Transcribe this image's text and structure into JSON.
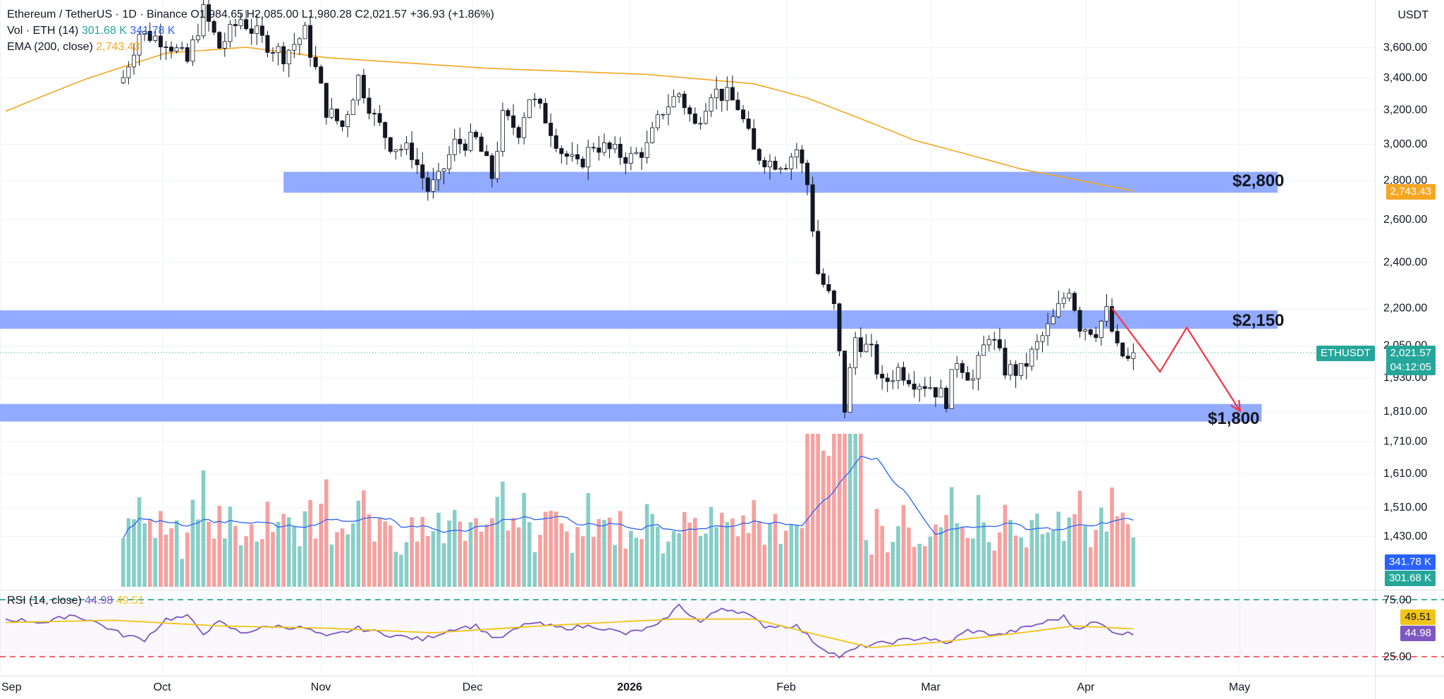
{
  "header": {
    "symbol": "Ethereum / TetherUS · 1D · Binance",
    "ohlc": "O1,984.65 H2,085.00 L1,980.28 C2,021.57 +36.93 (+1.86%)",
    "vol_label": "Vol · ETH (14)",
    "vol_value_1": "301.68 K",
    "vol_value_2": "341.78 K",
    "ema_label": "EMA (200, close)",
    "ema_value": "2,743.43",
    "rsi_label": "RSI (14, close)",
    "rsi_value": "44.98",
    "rsi_ma_value": "49.51"
  },
  "currency": "USDT",
  "tags": {
    "ema": "2,743.43",
    "symbol": "ETHUSDT",
    "price": "2,021.57",
    "countdown": "04:12:05",
    "vol_ma": "341.78 K",
    "vol": "301.68 K",
    "rsi_ma": "49.51",
    "rsi": "44.98"
  },
  "levels": [
    {
      "label": "$2,800",
      "price": 2800
    },
    {
      "label": "$2,150",
      "price": 2150
    },
    {
      "label": "$1,800",
      "price": 1800
    }
  ],
  "colors": {
    "up": "#26a69a",
    "down": "#ef5350",
    "zone": "#7f9cff",
    "ema": "#f5a623",
    "rsi": "#7e57c2",
    "rsi_ma": "#f0c419",
    "vol_ma": "#2962ff",
    "arrow": "#f23645"
  },
  "chart_data": [
    {
      "type": "candlestick",
      "title": "Ethereum / TetherUS · 1D · Binance",
      "yscale": "log",
      "y_ticks": [
        "3,600.00",
        "3,400.00",
        "3,200.00",
        "3,000.00",
        "2,800.00",
        "2,600.00",
        "2,400.00",
        "2,200.00",
        "2,050.00",
        "1,930.00",
        "1,810.00",
        "1,710.00",
        "1,610.00",
        "1,510.00",
        "1,430.00"
      ],
      "x_ticks": [
        "Sep",
        "Oct",
        "Nov",
        "Dec",
        "2026",
        "Feb",
        "Mar",
        "Apr",
        "May"
      ],
      "close_anchors": [
        {
          "day": 22,
          "close": 3400
        },
        {
          "day": 25,
          "close": 3700
        },
        {
          "day": 30,
          "close": 3650
        },
        {
          "day": 34,
          "close": 3500
        },
        {
          "day": 37,
          "close": 3850
        },
        {
          "day": 40,
          "close": 3600
        },
        {
          "day": 44,
          "close": 3800
        },
        {
          "day": 48,
          "close": 3650
        },
        {
          "day": 52,
          "close": 3550
        },
        {
          "day": 56,
          "close": 3700
        },
        {
          "day": 60,
          "close": 3200
        },
        {
          "day": 63,
          "close": 3100
        },
        {
          "day": 66,
          "close": 3400
        },
        {
          "day": 69,
          "close": 3150
        },
        {
          "day": 72,
          "close": 3000
        },
        {
          "day": 76,
          "close": 2950
        },
        {
          "day": 79,
          "close": 2750
        },
        {
          "day": 81,
          "close": 2800
        },
        {
          "day": 84,
          "close": 3000
        },
        {
          "day": 88,
          "close": 3020
        },
        {
          "day": 91,
          "close": 2820
        },
        {
          "day": 93,
          "close": 3150
        },
        {
          "day": 96,
          "close": 3080
        },
        {
          "day": 98,
          "close": 3280
        },
        {
          "day": 101,
          "close": 3150
        },
        {
          "day": 104,
          "close": 2960
        },
        {
          "day": 107,
          "close": 2870
        },
        {
          "day": 110,
          "close": 3000
        },
        {
          "day": 114,
          "close": 2950
        },
        {
          "day": 117,
          "close": 2920
        },
        {
          "day": 120,
          "close": 2980
        },
        {
          "day": 123,
          "close": 3200
        },
        {
          "day": 126,
          "close": 3300
        },
        {
          "day": 129,
          "close": 3100
        },
        {
          "day": 132,
          "close": 3320
        },
        {
          "day": 135,
          "close": 3280
        },
        {
          "day": 137,
          "close": 3220
        },
        {
          "day": 140,
          "close": 2950
        },
        {
          "day": 143,
          "close": 2900
        },
        {
          "day": 146,
          "close": 2900
        },
        {
          "day": 148,
          "close": 2970
        },
        {
          "day": 150,
          "close": 2780
        },
        {
          "day": 152,
          "close": 2350
        },
        {
          "day": 155,
          "close": 2200
        },
        {
          "day": 157,
          "close": 1820
        },
        {
          "day": 159,
          "close": 2080
        },
        {
          "day": 162,
          "close": 2020
        },
        {
          "day": 164,
          "close": 1900
        },
        {
          "day": 167,
          "close": 1960
        },
        {
          "day": 170,
          "close": 1920
        },
        {
          "day": 173,
          "close": 1900
        },
        {
          "day": 176,
          "close": 1850
        },
        {
          "day": 178,
          "close": 2000
        },
        {
          "day": 181,
          "close": 1920
        },
        {
          "day": 184,
          "close": 2100
        },
        {
          "day": 187,
          "close": 1960
        },
        {
          "day": 190,
          "close": 1950
        },
        {
          "day": 193,
          "close": 2050
        },
        {
          "day": 196,
          "close": 2150
        },
        {
          "day": 199,
          "close": 2290
        },
        {
          "day": 201,
          "close": 2130
        },
        {
          "day": 204,
          "close": 2110
        },
        {
          "day": 206,
          "close": 2180
        },
        {
          "day": 208,
          "close": 2030
        },
        {
          "day": 210,
          "close": 1990
        },
        {
          "day": 211,
          "close": 2021.57
        }
      ],
      "ema_200_anchors": [
        {
          "day": 0,
          "value": 3190
        },
        {
          "day": 15,
          "value": 3390
        },
        {
          "day": 30,
          "value": 3560
        },
        {
          "day": 45,
          "value": 3600
        },
        {
          "day": 60,
          "value": 3530
        },
        {
          "day": 90,
          "value": 3460
        },
        {
          "day": 120,
          "value": 3420
        },
        {
          "day": 140,
          "value": 3360
        },
        {
          "day": 150,
          "value": 3270
        },
        {
          "day": 170,
          "value": 3020
        },
        {
          "day": 190,
          "value": 2860
        },
        {
          "day": 211,
          "value": 2743.43
        }
      ],
      "zones": [
        {
          "label": "$2,800",
          "from_day": 52,
          "to_day": 238,
          "low": 2735,
          "high": 2845
        },
        {
          "label": "$2,150",
          "from_day": 0,
          "to_day": 238,
          "low": 2115,
          "high": 2190
        },
        {
          "label": "$1,800",
          "from_day": 0,
          "to_day": 235,
          "low": 1775,
          "high": 1835
        }
      ],
      "projection": [
        {
          "day": 207,
          "price": 2200
        },
        {
          "day": 216,
          "price": 1950
        },
        {
          "day": 221,
          "price": 2120
        },
        {
          "day": 231,
          "price": 1810
        }
      ]
    },
    {
      "type": "bar",
      "title": "Vol · ETH (14)",
      "last_volume": "301.68 K",
      "last_volume_ma": "341.78 K"
    },
    {
      "type": "line",
      "title": "RSI (14, close)",
      "y_ticks": [
        "75.00",
        "25.00"
      ],
      "ylim": [
        20,
        80
      ],
      "rsi_anchors": [
        {
          "day": 0,
          "value": 58
        },
        {
          "day": 8,
          "value": 55
        },
        {
          "day": 12,
          "value": 62
        },
        {
          "day": 16,
          "value": 57
        },
        {
          "day": 22,
          "value": 44
        },
        {
          "day": 26,
          "value": 40
        },
        {
          "day": 30,
          "value": 58
        },
        {
          "day": 34,
          "value": 60
        },
        {
          "day": 37,
          "value": 46
        },
        {
          "day": 40,
          "value": 55
        },
        {
          "day": 44,
          "value": 46
        },
        {
          "day": 50,
          "value": 52
        },
        {
          "day": 56,
          "value": 50
        },
        {
          "day": 60,
          "value": 42
        },
        {
          "day": 66,
          "value": 50
        },
        {
          "day": 72,
          "value": 44
        },
        {
          "day": 78,
          "value": 40
        },
        {
          "day": 84,
          "value": 50
        },
        {
          "day": 88,
          "value": 52
        },
        {
          "day": 92,
          "value": 40
        },
        {
          "day": 98,
          "value": 55
        },
        {
          "day": 104,
          "value": 50
        },
        {
          "day": 110,
          "value": 52
        },
        {
          "day": 116,
          "value": 45
        },
        {
          "day": 122,
          "value": 52
        },
        {
          "day": 126,
          "value": 70
        },
        {
          "day": 130,
          "value": 55
        },
        {
          "day": 134,
          "value": 68
        },
        {
          "day": 138,
          "value": 64
        },
        {
          "day": 142,
          "value": 52
        },
        {
          "day": 148,
          "value": 52
        },
        {
          "day": 152,
          "value": 35
        },
        {
          "day": 156,
          "value": 25
        },
        {
          "day": 160,
          "value": 34
        },
        {
          "day": 166,
          "value": 38
        },
        {
          "day": 172,
          "value": 42
        },
        {
          "day": 176,
          "value": 36
        },
        {
          "day": 180,
          "value": 48
        },
        {
          "day": 186,
          "value": 44
        },
        {
          "day": 192,
          "value": 52
        },
        {
          "day": 198,
          "value": 60
        },
        {
          "day": 200,
          "value": 50
        },
        {
          "day": 204,
          "value": 55
        },
        {
          "day": 208,
          "value": 46
        },
        {
          "day": 211,
          "value": 44.98
        }
      ],
      "rsi_ma_anchors": [
        {
          "day": 0,
          "value": 55
        },
        {
          "day": 20,
          "value": 57
        },
        {
          "day": 40,
          "value": 52
        },
        {
          "day": 60,
          "value": 50
        },
        {
          "day": 80,
          "value": 46
        },
        {
          "day": 100,
          "value": 52
        },
        {
          "day": 125,
          "value": 58
        },
        {
          "day": 140,
          "value": 58
        },
        {
          "day": 152,
          "value": 44
        },
        {
          "day": 162,
          "value": 33
        },
        {
          "day": 175,
          "value": 38
        },
        {
          "day": 190,
          "value": 46
        },
        {
          "day": 200,
          "value": 52
        },
        {
          "day": 211,
          "value": 49.51
        }
      ]
    }
  ]
}
